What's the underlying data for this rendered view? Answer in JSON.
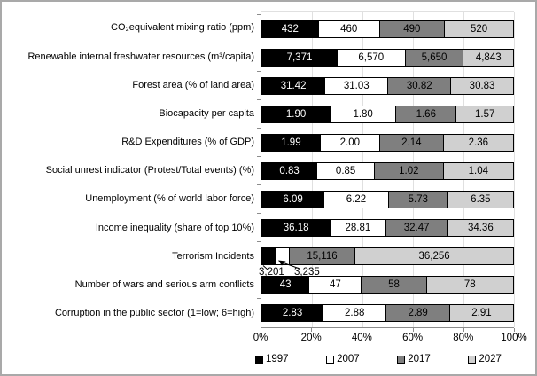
{
  "figure": {
    "background_color": "#ffffff",
    "border_color": "#a9a9a9"
  },
  "chart_data": {
    "type": "bar",
    "orientation": "horizontal",
    "stacking": "percent_100",
    "title": "",
    "xlabel": "",
    "ylabel": "",
    "xlim": [
      0,
      100
    ],
    "grid": true,
    "legend_position": "bottom",
    "series": [
      "1997",
      "2007",
      "2017",
      "2027"
    ],
    "series_colors": [
      "#000000",
      "#ffffff",
      "#7f7f7f",
      "#d0d0d0"
    ],
    "x_ticks": [
      "0%",
      "20%",
      "40%",
      "60%",
      "80%",
      "100%"
    ],
    "rows": [
      {
        "label": "CO₂equivalent mixing ratio (ppm)",
        "values": [
          432,
          460,
          490,
          520
        ],
        "display": [
          "432",
          "460",
          "490",
          "520"
        ]
      },
      {
        "label": "Renewable internal freshwater resources (m³/capita)",
        "values": [
          7371,
          6570,
          5650,
          4843
        ],
        "display": [
          "7,371",
          "6,570",
          "5,650",
          "4,843"
        ]
      },
      {
        "label": "Forest area (% of land area)",
        "values": [
          31.42,
          31.03,
          30.82,
          30.83
        ],
        "display": [
          "31.42",
          "31.03",
          "30.82",
          "30.83"
        ]
      },
      {
        "label": "Biocapacity per capita",
        "values": [
          1.9,
          1.8,
          1.66,
          1.57
        ],
        "display": [
          "1.90",
          "1.80",
          "1.66",
          "1.57"
        ]
      },
      {
        "label": "R&D Expenditures (% of GDP)",
        "values": [
          1.99,
          2.0,
          2.14,
          2.36
        ],
        "display": [
          "1.99",
          "2.00",
          "2.14",
          "2.36"
        ]
      },
      {
        "label": "Social unrest indicator (Protest/Total events) (%)",
        "values": [
          0.83,
          0.85,
          1.02,
          1.04
        ],
        "display": [
          "0.83",
          "0.85",
          "1.02",
          "1.04"
        ]
      },
      {
        "label": "Unemployment  (% of world labor force)",
        "values": [
          6.09,
          6.22,
          5.73,
          6.35
        ],
        "display": [
          "6.09",
          "6.22",
          "5.73",
          "6.35"
        ]
      },
      {
        "label": "Income inequality (share of top 10%)",
        "values": [
          36.18,
          28.81,
          32.47,
          34.36
        ],
        "display": [
          "36.18",
          "28.81",
          "32.47",
          "34.36"
        ]
      },
      {
        "label": "Terrorism Incidents",
        "values": [
          3201,
          3235,
          15116,
          36256
        ],
        "display": [
          "3,201",
          "3,235",
          "15,116",
          "36,256"
        ],
        "callout": {
          "hidden_segments": [
            0,
            1
          ]
        }
      },
      {
        "label": "Number of wars and serious arm conflicts",
        "values": [
          43,
          47,
          58,
          78
        ],
        "display": [
          "43",
          "47",
          "58",
          "78"
        ]
      },
      {
        "label": "Corruption in the public sector (1=low; 6=high)",
        "values": [
          2.83,
          2.88,
          2.89,
          2.91
        ],
        "display": [
          "2.83",
          "2.88",
          "2.89",
          "2.91"
        ]
      }
    ]
  },
  "legend": {
    "items": [
      {
        "label": "1997",
        "color": "#000000"
      },
      {
        "label": "2007",
        "color": "#ffffff"
      },
      {
        "label": "2017",
        "color": "#7f7f7f"
      },
      {
        "label": "2027",
        "color": "#d0d0d0"
      }
    ]
  }
}
